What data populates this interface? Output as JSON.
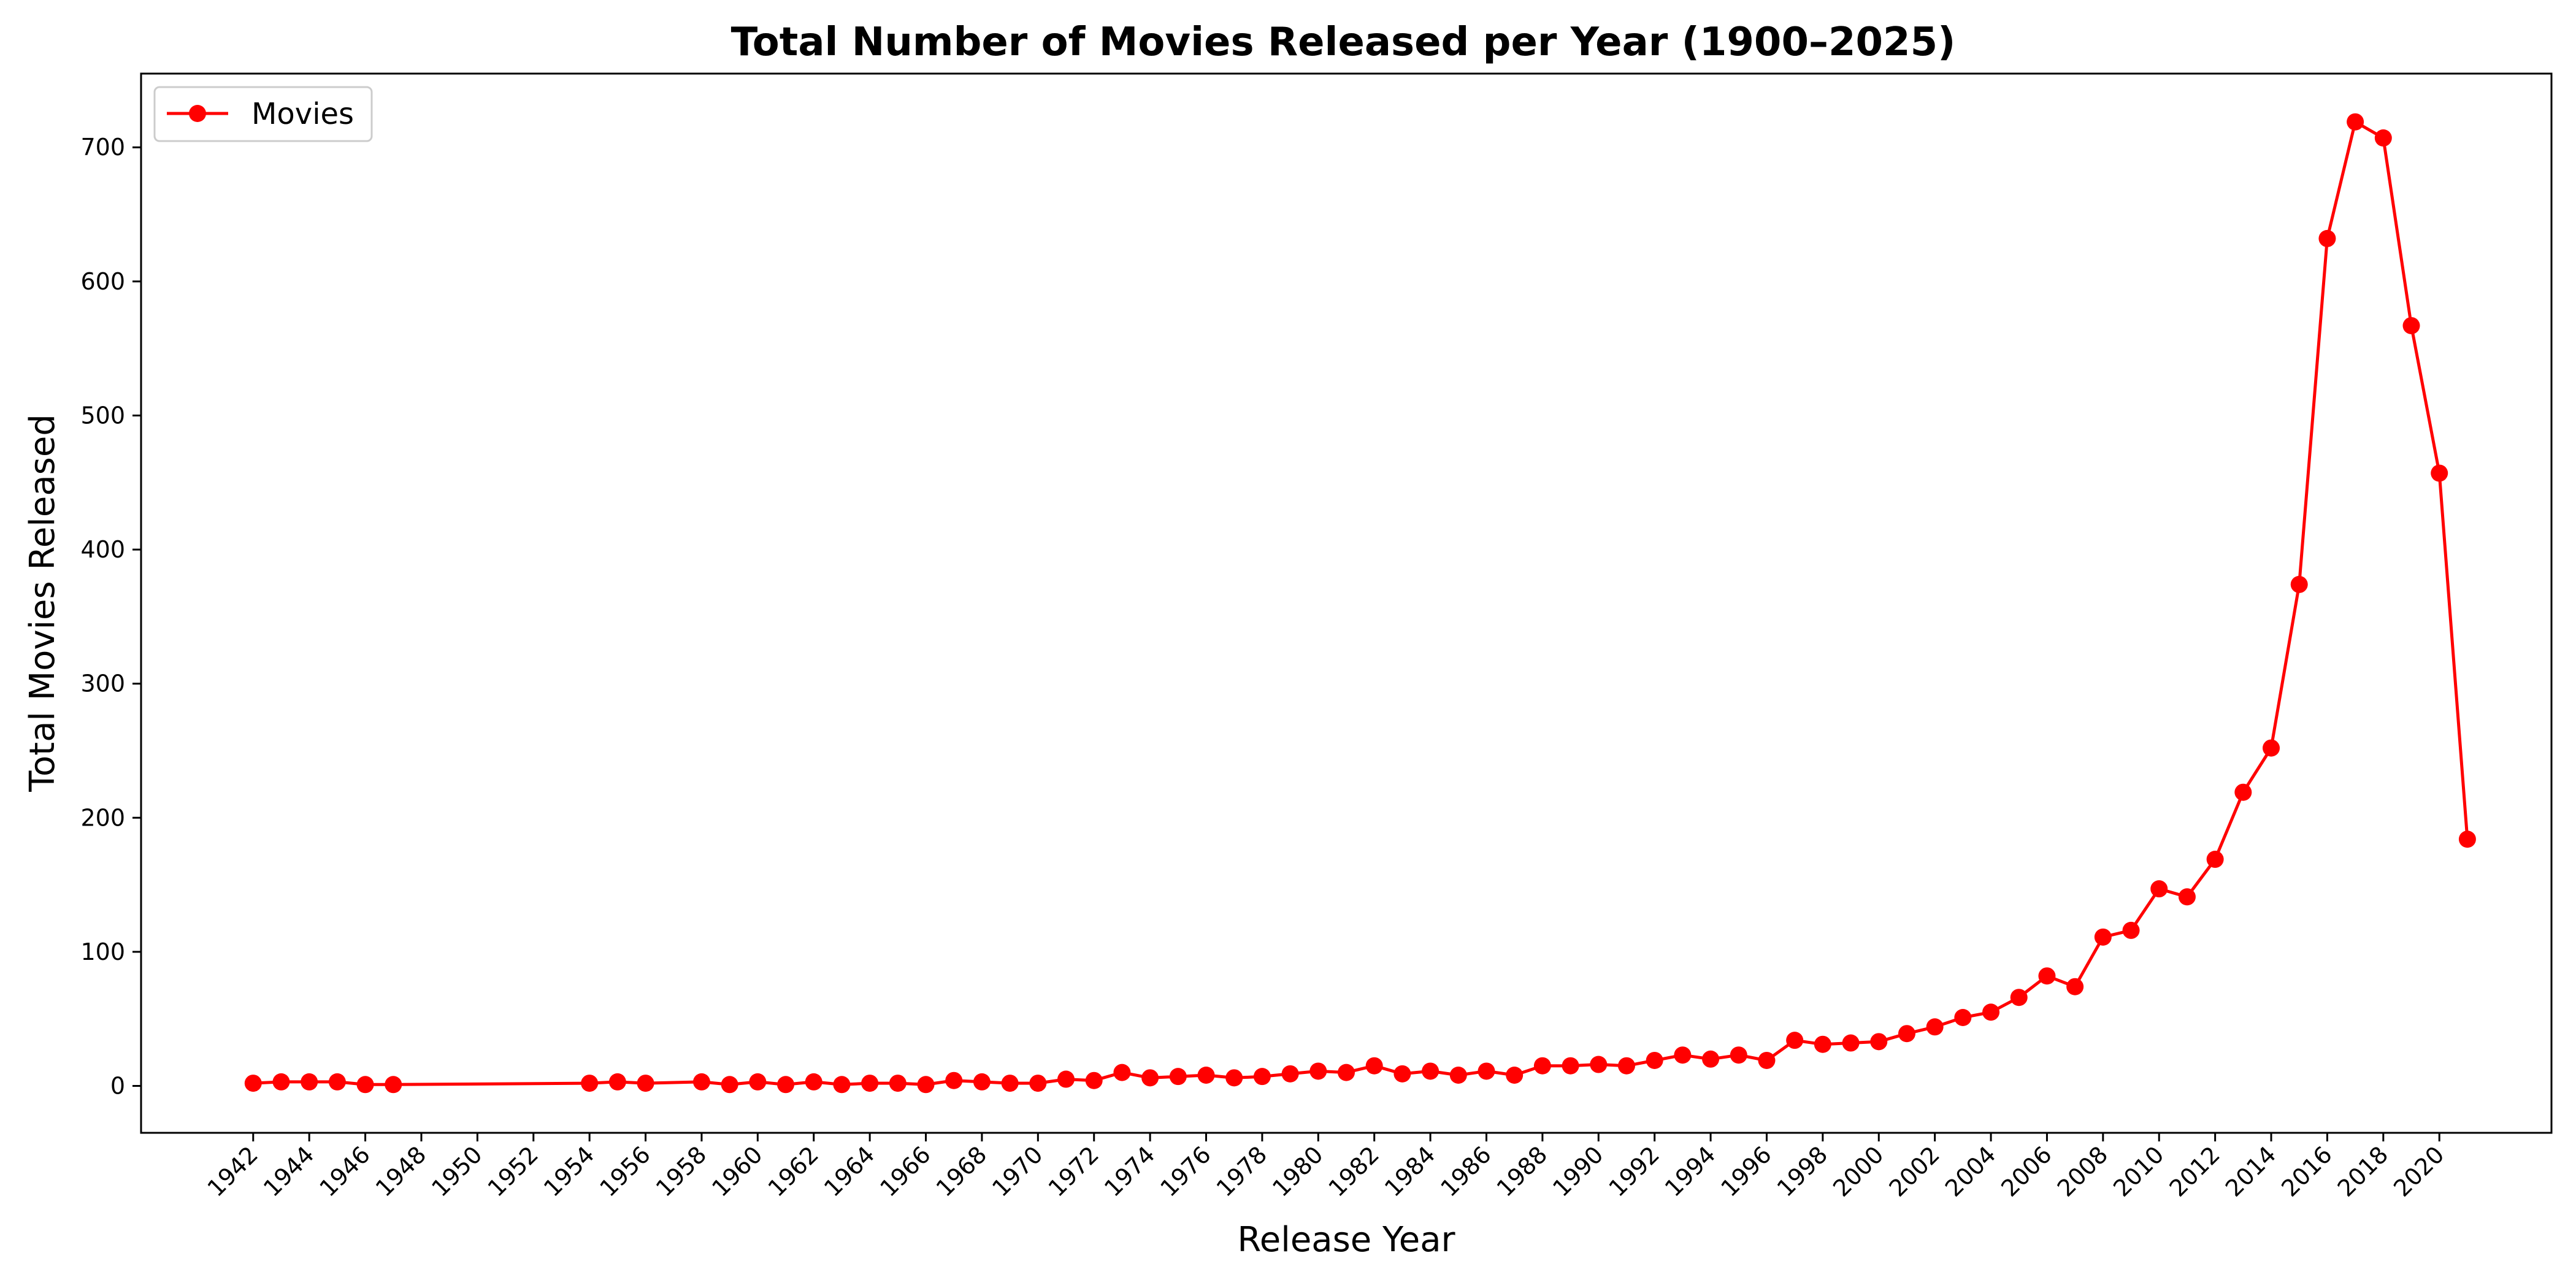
{
  "chart_data": {
    "type": "line",
    "title": "Total Number of Movies Released per Year (1900–2025)",
    "xlabel": "Release Year",
    "ylabel": "Total Movies Released",
    "xlim": [
      1938,
      2024
    ],
    "ylim": [
      -35,
      755
    ],
    "xticks": [
      1942,
      1944,
      1946,
      1948,
      1950,
      1952,
      1954,
      1956,
      1958,
      1960,
      1962,
      1964,
      1966,
      1968,
      1970,
      1972,
      1974,
      1976,
      1978,
      1980,
      1982,
      1984,
      1986,
      1988,
      1990,
      1992,
      1994,
      1996,
      1998,
      2000,
      2002,
      2004,
      2006,
      2008,
      2010,
      2012,
      2014,
      2016,
      2018,
      2020
    ],
    "yticks": [
      0,
      100,
      200,
      300,
      400,
      500,
      600,
      700
    ],
    "grid": false,
    "legend": "top-left",
    "series": [
      {
        "name": "Movies",
        "color": "#ff0000",
        "marker": "circle",
        "x": [
          1942,
          1943,
          1944,
          1945,
          1946,
          1947,
          1954,
          1955,
          1956,
          1958,
          1959,
          1960,
          1961,
          1962,
          1963,
          1964,
          1965,
          1966,
          1967,
          1968,
          1969,
          1970,
          1971,
          1972,
          1973,
          1974,
          1975,
          1976,
          1977,
          1978,
          1979,
          1980,
          1981,
          1982,
          1983,
          1984,
          1985,
          1986,
          1987,
          1988,
          1989,
          1990,
          1991,
          1992,
          1993,
          1994,
          1995,
          1996,
          1997,
          1998,
          1999,
          2000,
          2001,
          2002,
          2003,
          2004,
          2005,
          2006,
          2007,
          2008,
          2009,
          2010,
          2011,
          2012,
          2013,
          2014,
          2015,
          2016,
          2017,
          2018,
          2019,
          2020,
          2021
        ],
        "y": [
          2,
          3,
          3,
          3,
          1,
          1,
          2,
          3,
          2,
          3,
          1,
          3,
          1,
          3,
          1,
          2,
          2,
          1,
          4,
          3,
          2,
          2,
          5,
          4,
          10,
          6,
          7,
          8,
          6,
          7,
          9,
          11,
          10,
          15,
          9,
          11,
          8,
          11,
          8,
          15,
          15,
          16,
          15,
          19,
          23,
          20,
          23,
          19,
          34,
          31,
          32,
          33,
          39,
          44,
          51,
          55,
          66,
          82,
          74,
          111,
          116,
          147,
          141,
          169,
          219,
          252,
          374,
          632,
          719,
          707,
          567,
          457,
          184
        ]
      }
    ]
  }
}
